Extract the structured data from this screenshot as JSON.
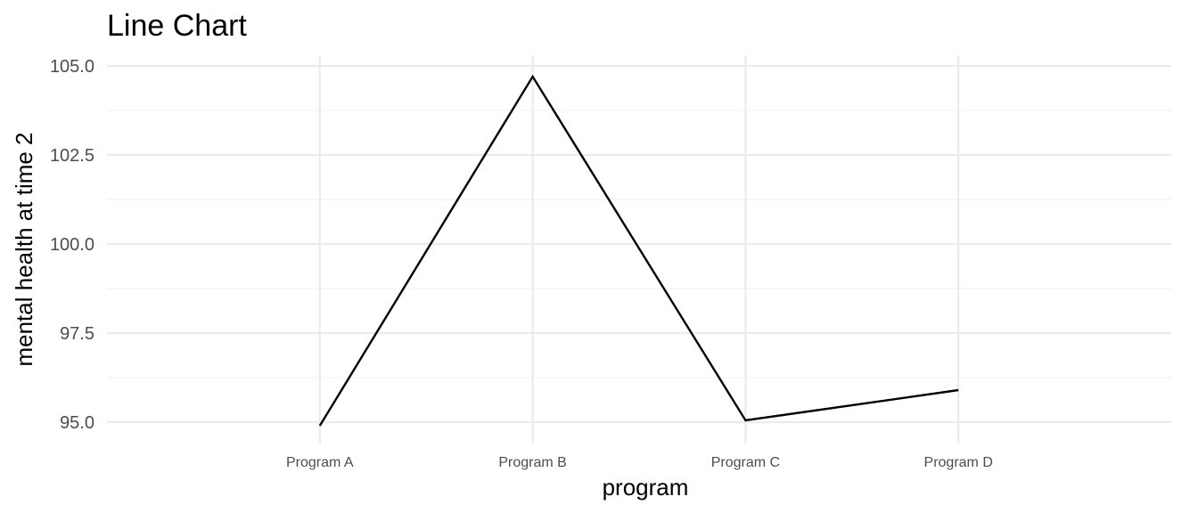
{
  "chart_data": {
    "type": "line",
    "title": "Line Chart",
    "xlabel": "program",
    "ylabel": "mental health at time 2",
    "categories": [
      "Program A",
      "Program B",
      "Program C",
      "Program D"
    ],
    "values": [
      94.9,
      104.7,
      95.05,
      95.9
    ],
    "ylim": [
      94.4,
      105.3
    ],
    "yticks": [
      95.0,
      97.5,
      100.0,
      102.5,
      105.0
    ],
    "ytick_labels": [
      "95.0",
      "97.5",
      "100.0",
      "102.5",
      "105.0"
    ],
    "line_color": "#000000",
    "grid": true,
    "legend": "none"
  }
}
